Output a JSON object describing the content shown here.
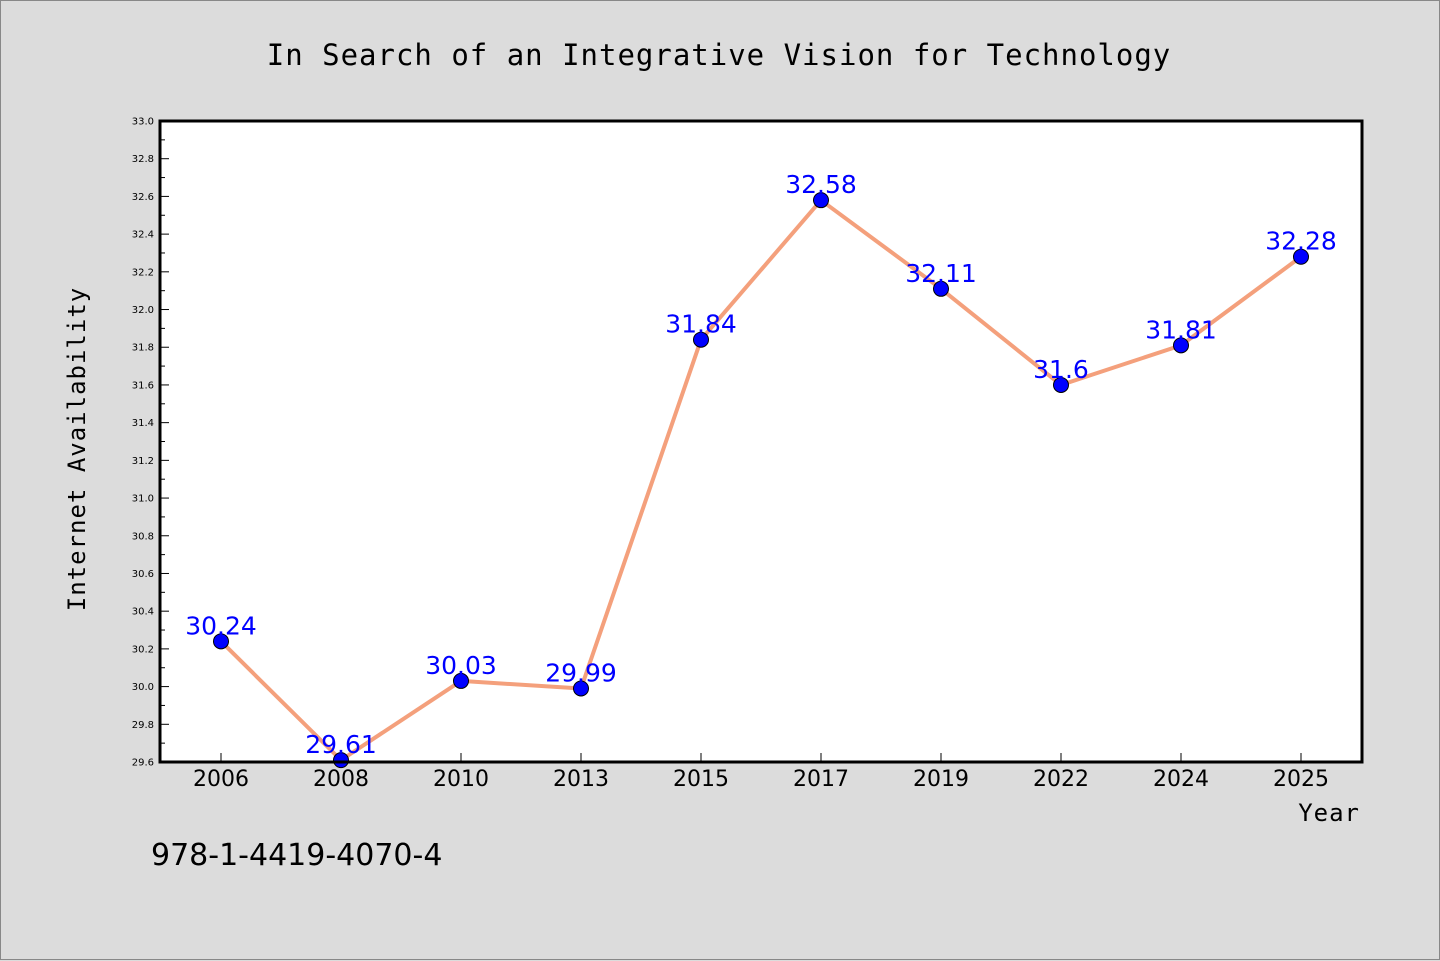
{
  "colors": {
    "background": "#dcdcdc",
    "plot_background": "#ffffff",
    "line": "#f4a07c",
    "marker": "#0000ff",
    "data_label": "#0000ff"
  },
  "footer": {
    "isbn": "978-1-4419-4070-4"
  },
  "chart_data": {
    "type": "line",
    "title": "In Search of an Integrative Vision for Technology",
    "xlabel": "Year",
    "ylabel": "Internet Availability",
    "categories": [
      "2006",
      "2008",
      "2010",
      "2013",
      "2015",
      "2017",
      "2019",
      "2022",
      "2024",
      "2025"
    ],
    "series": [
      {
        "values": [
          30.24,
          29.61,
          30.03,
          29.99,
          31.84,
          32.58,
          32.11,
          31.6,
          31.81,
          32.28
        ],
        "labels": [
          "30.24",
          "29.61",
          "30.03",
          "29.99",
          "31.84",
          "32.58",
          "32.11",
          "31.6",
          "31.81",
          "32.28"
        ]
      }
    ],
    "ylim": [
      29.6,
      33.0
    ],
    "yticks": [
      "29.6",
      "29.8",
      "30.0",
      "30.2",
      "30.4",
      "30.6",
      "30.8",
      "31.0",
      "31.2",
      "31.4",
      "31.6",
      "31.8",
      "32.0",
      "32.2",
      "32.4",
      "32.6",
      "32.8",
      "33.0"
    ],
    "grid": false,
    "legend": "none"
  }
}
